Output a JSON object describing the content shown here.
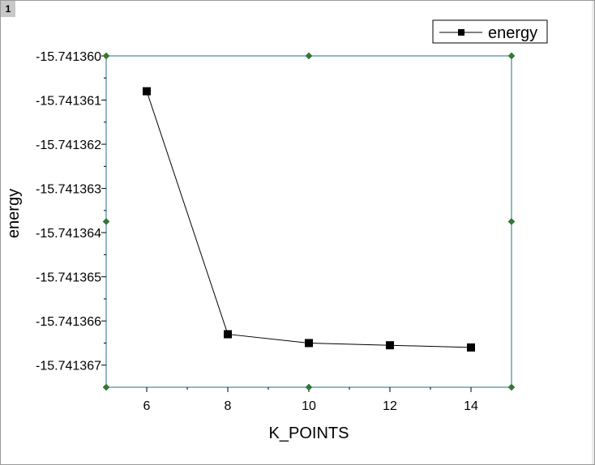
{
  "window": {
    "layer_tab_label": "1"
  },
  "chart_data": {
    "type": "line",
    "title": "",
    "xlabel": "K_POINTS",
    "ylabel": "energy",
    "xlim": [
      5,
      15
    ],
    "ylim": [
      -15.7413675,
      -15.74136
    ],
    "xticks": [
      6,
      8,
      10,
      12,
      14
    ],
    "xtick_labels": [
      "6",
      "8",
      "10",
      "12",
      "14"
    ],
    "yticks": [
      -15.74136,
      -15.741361,
      -15.741362,
      -15.741363,
      -15.741364,
      -15.741365,
      -15.741366,
      -15.741367
    ],
    "ytick_labels": [
      "-15.741360",
      "-15.741361",
      "-15.741362",
      "-15.741363",
      "-15.741364",
      "-15.741365",
      "-15.741366",
      "-15.741367"
    ],
    "grid": false,
    "legend_position": "top-right",
    "frame_color": "#1f6f8b",
    "corner_marker_color": "#2e7d32",
    "series": [
      {
        "name": "energy",
        "marker": "square",
        "color": "#000000",
        "x": [
          6,
          8,
          10,
          12,
          14
        ],
        "y": [
          -15.7413608,
          -15.7413663,
          -15.7413665,
          -15.74136655,
          -15.7413666
        ]
      }
    ]
  }
}
